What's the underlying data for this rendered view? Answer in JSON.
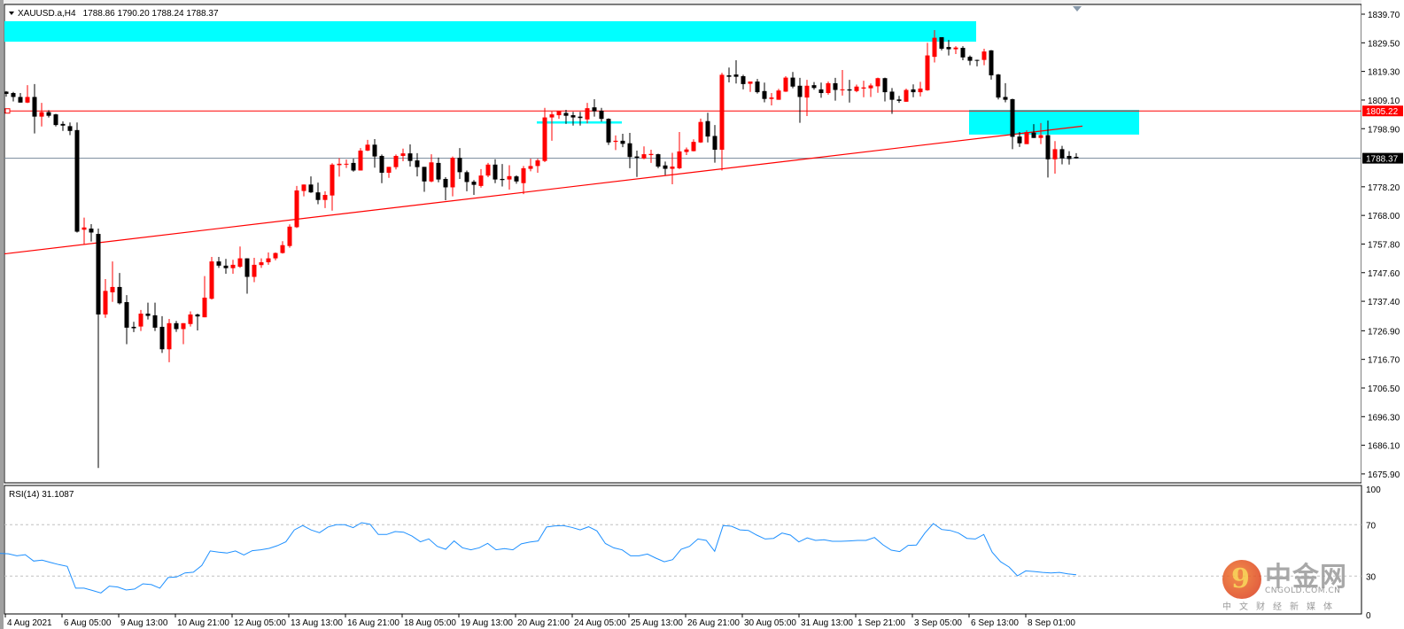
{
  "header": {
    "symbol": "XAUUSD.a,H4",
    "ohlc_text": "1788.86 1790.20 1788.24 1788.37"
  },
  "colors": {
    "bull": "#ff0000",
    "bear": "#000000",
    "zone": "#00ffff",
    "trendline": "#ff0000",
    "level_line": "#ff0000",
    "price_line": "#778899",
    "rsi": "#1e90ff"
  },
  "chart_data": [
    {
      "type": "candlestick",
      "symbol": "XAUUSD.a",
      "timeframe": "H4",
      "ylim": [
        1675.9,
        1839.7
      ],
      "price_ticks": [
        "1839.70",
        "1829.50",
        "1819.30",
        "1809.10",
        "1798.90",
        "1778.20",
        "1768.00",
        "1757.80",
        "1747.60",
        "1737.40",
        "1726.90",
        "1716.70",
        "1706.50",
        "1696.30",
        "1686.10",
        "1675.90"
      ],
      "time_labels": [
        "4 Aug 2021",
        "6 Aug 05:00",
        "9 Aug 13:00",
        "10 Aug 21:00",
        "12 Aug 05:00",
        "13 Aug 13:00",
        "16 Aug 21:00",
        "18 Aug 05:00",
        "19 Aug 13:00",
        "20 Aug 21:00",
        "24 Aug 05:00",
        "25 Aug 13:00",
        "26 Aug 21:00",
        "30 Aug 05:00",
        "31 Aug 13:00",
        "1 Sep 21:00",
        "3 Sep 05:00",
        "6 Sep 13:00",
        "8 Sep 01:00"
      ],
      "candles_ohlc": [
        [
          1812.1,
          1812.3,
          1810.3,
          1811.3
        ],
        [
          1811.6,
          1812,
          1808.6,
          1810.2
        ],
        [
          1810.2,
          1811.6,
          1808.2,
          1808.2
        ],
        [
          1808.2,
          1814.4,
          1808,
          1810.2
        ],
        [
          1810.2,
          1814.8,
          1797.2,
          1803.2
        ],
        [
          1803.2,
          1808.1,
          1799.7,
          1804.8
        ],
        [
          1804.8,
          1805.5,
          1802.9,
          1803.5
        ],
        [
          1804,
          1804.2,
          1799.7,
          1800.2
        ],
        [
          1800.6,
          1801.5,
          1798.1,
          1800
        ],
        [
          1799.8,
          1801.1,
          1796.6,
          1798.1
        ],
        [
          1798.4,
          1801.1,
          1761.9,
          1762.2
        ],
        [
          1762.9,
          1767.2,
          1757.6,
          1763.7
        ],
        [
          1763.3,
          1764.9,
          1758.7,
          1761.9
        ],
        [
          1761.4,
          1763.3,
          1678,
          1732.7
        ],
        [
          1732.7,
          1745.3,
          1731.5,
          1741.1
        ],
        [
          1740.6,
          1751.6,
          1737.2,
          1742.5
        ],
        [
          1742.5,
          1747.5,
          1736.3,
          1736.7
        ],
        [
          1737.1,
          1739.6,
          1722.1,
          1728
        ],
        [
          1728.3,
          1730.1,
          1726.4,
          1727.8
        ],
        [
          1728.4,
          1734.3,
          1726.8,
          1733
        ],
        [
          1733,
          1736.9,
          1730.9,
          1732.2
        ],
        [
          1732.4,
          1736.9,
          1726.8,
          1728
        ],
        [
          1728.3,
          1732.1,
          1719,
          1720.3
        ],
        [
          1720.3,
          1731.1,
          1715.7,
          1729.6
        ],
        [
          1729.6,
          1730.4,
          1726.5,
          1727.5
        ],
        [
          1727.5,
          1729.6,
          1722.1,
          1729.6
        ],
        [
          1729.3,
          1733.8,
          1728.4,
          1732.7
        ],
        [
          1732.7,
          1733,
          1727,
          1732
        ],
        [
          1731.7,
          1746.4,
          1731.7,
          1738.7
        ],
        [
          1738.3,
          1753.2,
          1738,
          1751.6
        ],
        [
          1751.6,
          1753.2,
          1749.3,
          1750.1
        ],
        [
          1750.1,
          1752.5,
          1747.2,
          1749.2
        ],
        [
          1749.2,
          1752.2,
          1747.2,
          1750.4
        ],
        [
          1749.7,
          1756.9,
          1749.3,
          1752.7
        ],
        [
          1752.7,
          1752.7,
          1740.1,
          1746.1
        ],
        [
          1746.1,
          1752.9,
          1744.2,
          1750.4
        ],
        [
          1750.3,
          1752.7,
          1749.3,
          1751.3
        ],
        [
          1751.3,
          1754.8,
          1750.4,
          1752.7
        ],
        [
          1752.7,
          1754.8,
          1752,
          1754.6
        ],
        [
          1754.6,
          1758.8,
          1754.4,
          1757.4
        ],
        [
          1757.1,
          1764.8,
          1756.5,
          1764
        ],
        [
          1763.8,
          1778.5,
          1763.5,
          1776.9
        ],
        [
          1776.7,
          1779,
          1774.8,
          1779
        ],
        [
          1779,
          1781.9,
          1776,
          1776.2
        ],
        [
          1776.2,
          1779.7,
          1772,
          1773.5
        ],
        [
          1773.5,
          1776.6,
          1770.6,
          1775.3
        ],
        [
          1775.1,
          1786.6,
          1769.7,
          1786.1
        ],
        [
          1785.9,
          1788.4,
          1781.8,
          1786.4
        ],
        [
          1786.2,
          1787.9,
          1784.9,
          1786.4
        ],
        [
          1786.7,
          1788.2,
          1783.6,
          1784
        ],
        [
          1784,
          1792,
          1784,
          1791.1
        ],
        [
          1791.1,
          1794.9,
          1790.9,
          1793.2
        ],
        [
          1793.2,
          1795.2,
          1785,
          1789
        ],
        [
          1789.2,
          1789.7,
          1779.5,
          1783.2
        ],
        [
          1783.2,
          1785.3,
          1781.4,
          1785.3
        ],
        [
          1785.2,
          1789.7,
          1784.4,
          1789.2
        ],
        [
          1789.2,
          1791.8,
          1787.3,
          1790.1
        ],
        [
          1790.1,
          1793.3,
          1785.4,
          1787.4
        ],
        [
          1787.6,
          1790.2,
          1781.9,
          1785.2
        ],
        [
          1785.3,
          1785.3,
          1776.4,
          1780.1
        ],
        [
          1780.1,
          1789.8,
          1779.8,
          1786.9
        ],
        [
          1786.7,
          1788.6,
          1779.8,
          1780.8
        ],
        [
          1781,
          1781.6,
          1773.4,
          1778
        ],
        [
          1778,
          1789,
          1774.8,
          1788.5
        ],
        [
          1788.5,
          1792,
          1781,
          1783.4
        ],
        [
          1783.4,
          1784,
          1776.6,
          1779.9
        ],
        [
          1780,
          1780.6,
          1775.3,
          1778.9
        ],
        [
          1778.5,
          1784.5,
          1777.9,
          1782.2
        ],
        [
          1782.2,
          1786.7,
          1781.6,
          1786.1
        ],
        [
          1786.1,
          1788,
          1779.5,
          1780.8
        ],
        [
          1781,
          1786.3,
          1778.3,
          1780.6
        ],
        [
          1780.8,
          1785.9,
          1777.2,
          1782
        ],
        [
          1781.9,
          1782.3,
          1779.3,
          1780.1
        ],
        [
          1779.5,
          1785.6,
          1775.6,
          1784.8
        ],
        [
          1784.6,
          1788.2,
          1783.7,
          1785.6
        ],
        [
          1785.6,
          1788.2,
          1783.2,
          1787.6
        ],
        [
          1787.4,
          1806.3,
          1787,
          1802.9
        ],
        [
          1802.9,
          1805,
          1794.6,
          1804
        ],
        [
          1803.7,
          1805.3,
          1802.4,
          1805.3
        ],
        [
          1804.5,
          1805.6,
          1800.6,
          1803.5
        ],
        [
          1803.7,
          1804.9,
          1800,
          1802.9
        ],
        [
          1803.2,
          1804.9,
          1800,
          1802.7
        ],
        [
          1802.2,
          1808.1,
          1800.8,
          1806.2
        ],
        [
          1806.5,
          1809.4,
          1803.2,
          1805.1
        ],
        [
          1805.3,
          1806.3,
          1801.4,
          1802.4
        ],
        [
          1802.4,
          1802.6,
          1793.1,
          1794
        ],
        [
          1794.2,
          1796.5,
          1791.3,
          1794.6
        ],
        [
          1794.6,
          1797.1,
          1792.3,
          1793.5
        ],
        [
          1793.7,
          1797.4,
          1784.8,
          1788.8
        ],
        [
          1789,
          1791.1,
          1781.7,
          1788.5
        ],
        [
          1788.3,
          1792.6,
          1788,
          1789.8
        ],
        [
          1789.5,
          1791.4,
          1786.7,
          1789.9
        ],
        [
          1789.8,
          1790,
          1784.8,
          1785.4
        ],
        [
          1785.8,
          1787.2,
          1782.4,
          1784.6
        ],
        [
          1784.6,
          1790.3,
          1779.1,
          1785.4
        ],
        [
          1784.8,
          1797.7,
          1784.5,
          1790.8
        ],
        [
          1790.6,
          1792.2,
          1789.5,
          1791.5
        ],
        [
          1790.9,
          1795.1,
          1790.8,
          1794.2
        ],
        [
          1794,
          1802.5,
          1793.8,
          1801.3
        ],
        [
          1801.6,
          1804.6,
          1794,
          1796.1
        ],
        [
          1796.3,
          1800.2,
          1786.8,
          1791.4
        ],
        [
          1791.4,
          1818.8,
          1784,
          1818.1
        ],
        [
          1817.9,
          1820.7,
          1815.4,
          1817.4
        ],
        [
          1818.2,
          1823.3,
          1815,
          1817.4
        ],
        [
          1817.6,
          1818.1,
          1812.9,
          1814.8
        ],
        [
          1814.9,
          1815.7,
          1812,
          1815.7
        ],
        [
          1815.7,
          1816.6,
          1811.4,
          1811.9
        ],
        [
          1812.3,
          1815.3,
          1808.3,
          1809.5
        ],
        [
          1809.5,
          1811.6,
          1807.2,
          1810
        ],
        [
          1809.2,
          1813.1,
          1809.2,
          1812.5
        ],
        [
          1812.1,
          1817.6,
          1812,
          1817.1
        ],
        [
          1817.1,
          1819.1,
          1813.3,
          1813.9
        ],
        [
          1814.2,
          1817,
          1801,
          1810.2
        ],
        [
          1810,
          1816.3,
          1803.4,
          1814.2
        ],
        [
          1814.4,
          1815.5,
          1812.8,
          1813.4
        ],
        [
          1812.9,
          1815.3,
          1809.9,
          1811.6
        ],
        [
          1811.6,
          1815.7,
          1811,
          1815.1
        ],
        [
          1815.1,
          1817,
          1808.9,
          1812.7
        ],
        [
          1812.7,
          1819.8,
          1810.7,
          1812.9
        ],
        [
          1812.9,
          1816.3,
          1808.2,
          1812.5
        ],
        [
          1812.3,
          1814.6,
          1811.9,
          1813.9
        ],
        [
          1813.2,
          1816,
          1810.1,
          1813.6
        ],
        [
          1813.3,
          1815,
          1810.2,
          1814.3
        ],
        [
          1814,
          1817.1,
          1811.7,
          1816.9
        ],
        [
          1816.9,
          1817.1,
          1808.6,
          1811.9
        ],
        [
          1812.1,
          1813.4,
          1804.2,
          1809.2
        ],
        [
          1809.3,
          1810.6,
          1808.1,
          1808.8
        ],
        [
          1808.5,
          1813.2,
          1808.5,
          1812.7
        ],
        [
          1812.9,
          1814.7,
          1810.1,
          1811.9
        ],
        [
          1811.9,
          1815.6,
          1810.4,
          1813.2
        ],
        [
          1812.6,
          1829.5,
          1812.4,
          1825
        ],
        [
          1824.5,
          1834,
          1822.5,
          1831.3
        ],
        [
          1831.5,
          1831.5,
          1826.8,
          1827.4
        ],
        [
          1828,
          1830.5,
          1825,
          1827.2
        ],
        [
          1827.2,
          1828.3,
          1825.5,
          1827.8
        ],
        [
          1827.7,
          1828.3,
          1823.3,
          1824.3
        ],
        [
          1824.5,
          1825,
          1821.5,
          1823.1
        ],
        [
          1823.4,
          1823.5,
          1821.1,
          1823.1
        ],
        [
          1823.4,
          1827.4,
          1821.5,
          1826.4
        ],
        [
          1826.8,
          1826.9,
          1816.4,
          1817.9
        ],
        [
          1818.2,
          1818.4,
          1809.3,
          1810
        ],
        [
          1810.2,
          1815.1,
          1808.3,
          1809.2
        ],
        [
          1809.4,
          1809.6,
          1791.6,
          1796
        ],
        [
          1796.1,
          1797.7,
          1792.4,
          1793.7
        ],
        [
          1793.4,
          1798.3,
          1793.4,
          1797.7
        ],
        [
          1797.5,
          1800.5,
          1795.6,
          1795.6
        ],
        [
          1795.6,
          1800.9,
          1793.4,
          1796.6
        ],
        [
          1796.6,
          1801.8,
          1781.5,
          1788
        ],
        [
          1788,
          1794.5,
          1782.9,
          1791.6
        ],
        [
          1791.6,
          1792.8,
          1786.2,
          1788.3
        ],
        [
          1789.2,
          1790.9,
          1786.1,
          1788.1
        ],
        [
          1788.86,
          1790.2,
          1788.24,
          1788.37
        ]
      ],
      "level_line": {
        "price": 1805.22,
        "label": "1805.22"
      },
      "current_price": {
        "price": 1788.37,
        "label": "1788.37"
      },
      "trendline": {
        "start_price": 1754.3,
        "end_price": 1799.8
      },
      "zones": [
        {
          "top": 1837.2,
          "bottom": 1829.9
        },
        {
          "top": 1805.6,
          "bottom": 1796.8
        }
      ],
      "small_level": {
        "price": 1801.1
      }
    },
    {
      "type": "line",
      "indicator_label": "RSI(14) 31.1087",
      "ylim": [
        0,
        100
      ],
      "levels": [
        70,
        30
      ],
      "tick_labels": [
        "100",
        "70",
        "30",
        "0"
      ],
      "values": [
        47.7,
        47.4,
        45.8,
        46.7,
        41.7,
        42.4,
        40.6,
        39,
        37.6,
        20.6,
        20.6,
        18.8,
        16.9,
        22.2,
        21.5,
        19.2,
        19.9,
        24,
        23.4,
        20.6,
        28.9,
        29.3,
        32.5,
        33,
        38.3,
        49.6,
        48.7,
        48,
        49.6,
        46.4,
        49.8,
        50.5,
        51.6,
        53.7,
        56.7,
        65.9,
        69.4,
        65.9,
        63.8,
        68.2,
        70,
        70,
        67.7,
        71.6,
        70.4,
        62.4,
        62.4,
        64.7,
        64.2,
        61.2,
        56.7,
        59,
        53.2,
        50.9,
        57.4,
        52.1,
        50.5,
        52.1,
        55.5,
        50.5,
        51.4,
        50.5,
        55.1,
        56.5,
        57.4,
        68.2,
        69.1,
        69.3,
        67.9,
        66,
        68.4,
        65.2,
        55.4,
        52,
        50.4,
        45.8,
        45.8,
        47.2,
        44,
        41.2,
        42.8,
        50.9,
        53.2,
        58.9,
        57.8,
        49.3,
        69.3,
        68.8,
        66,
        65.6,
        61.9,
        58.9,
        59.4,
        63.5,
        61.9,
        56.6,
        59.7,
        57.8,
        58.3,
        57.1,
        57.1,
        57.4,
        57.8,
        57.8,
        60.1,
        54.4,
        50.2,
        49.1,
        53.9,
        54.2,
        63.5,
        70.9,
        66.3,
        65.6,
        63.5,
        59.4,
        58.9,
        62.4,
        48.6,
        41.2,
        37.1,
        30.2,
        34.1,
        33.6,
        32.9,
        32.5,
        32.9,
        31.7,
        31.1
      ]
    }
  ],
  "watermark": {
    "brand_cn": "中金网",
    "url": "CNGOLD.COM.CN",
    "tagline": "中文财经新媒体"
  }
}
